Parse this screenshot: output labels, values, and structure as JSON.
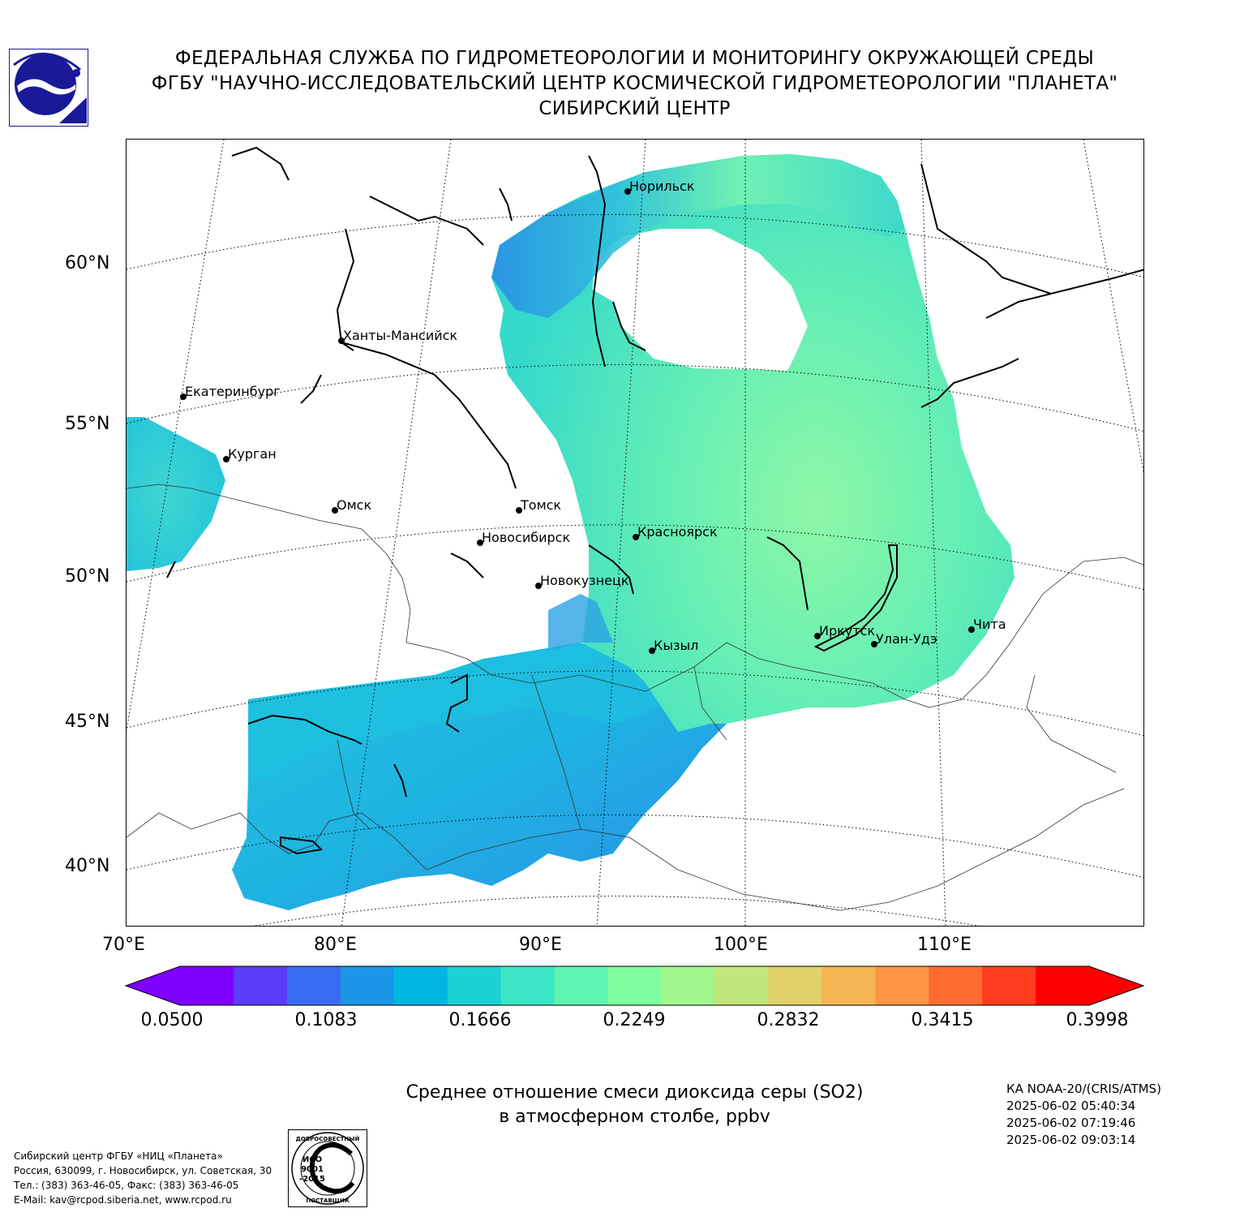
{
  "header": {
    "line1": "ФЕДЕРАЛЬНАЯ СЛУЖБА ПО ГИДРОМЕТЕОРОЛОГИИ И МОНИТОРИНГУ ОКРУЖАЮЩЕЙ СРЕДЫ",
    "line2": "ФГБУ \"НАУЧНО-ИССЛЕДОВАТЕЛЬСКИЙ ЦЕНТР КОСМИЧЕСКОЙ ГИДРОМЕТЕОРОЛОГИИ \"ПЛАНЕТА\"",
    "line3": "СИБИРСКИЙ ЦЕНТР"
  },
  "map": {
    "lat_labels": [
      "60°N",
      "55°N",
      "50°N",
      "45°N",
      "40°N"
    ],
    "lon_labels": [
      "70°E",
      "80°E",
      "90°E",
      "100°E",
      "110°E"
    ],
    "cities": [
      {
        "name": "Норильск"
      },
      {
        "name": "Ханты-Мансийск"
      },
      {
        "name": "Екатеринбург"
      },
      {
        "name": "Курган"
      },
      {
        "name": "Омск"
      },
      {
        "name": "Томск"
      },
      {
        "name": "Новосибирск"
      },
      {
        "name": "Красноярск"
      },
      {
        "name": "Новокузнецк"
      },
      {
        "name": "Кызыл"
      },
      {
        "name": "Иркутск"
      },
      {
        "name": "Улан-Удэ"
      },
      {
        "name": "Чита"
      }
    ],
    "colors": {
      "coast": "#000000",
      "grid": "#000000"
    }
  },
  "colorbar": {
    "ticks": [
      "0.0500",
      "0.1083",
      "0.1666",
      "0.2249",
      "0.2832",
      "0.3415",
      "0.3998"
    ],
    "colors": [
      "#7f00ff",
      "#5a3cfa",
      "#3a6cf3",
      "#1a95e8",
      "#00b6e0",
      "#1cd1d4",
      "#3de6c4",
      "#5ef4b3",
      "#7ffea0",
      "#a0f68c",
      "#c1e77a",
      "#dfd068",
      "#f6b555",
      "#ff9543",
      "#ff6c31",
      "#ff3c1e",
      "#ff0000"
    ]
  },
  "caption": {
    "line1": "Среднее отношение смеси диоксида серы (SO2)",
    "line2": "в атмосферном столбе, ppbv"
  },
  "satellite": {
    "name": "КА NOAA-20/(CRIS/ATMS)",
    "times": [
      "2025-06-02 05:40:34",
      "2025-06-02 07:19:46",
      "2025-06-02 09:03:14"
    ]
  },
  "contact": {
    "line1": "Сибирский центр ФГБУ «НИЦ «Планета»",
    "line2": "Россия, 630099, г. Новосибирск, ул. Советская, 30",
    "line3": "Тел.: (383) 363-46-05, Факс: (383) 363-46-05",
    "line4": "E-Mail: kav@rcpod.siberia.net, www.rcpod.ru"
  },
  "iso": {
    "top": "ДОБРОСОВЕСТНЫЙ",
    "mark1": "ИСО",
    "mark2": "9001",
    "mark3": "-2015",
    "bottom": "ПОСТАВЩИК"
  }
}
